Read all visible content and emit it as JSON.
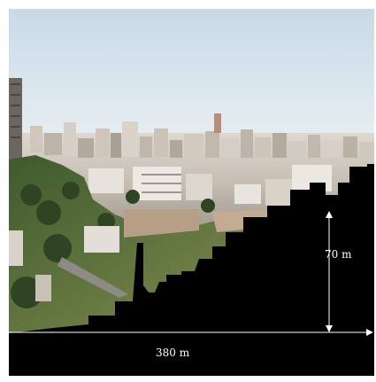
{
  "image": {
    "subject": "city-panorama-with-black-building-silhouette",
    "colors": {
      "sky_top": "#c9dbe8",
      "sky_bottom": "#e4ebee",
      "city_light": "#d8d0c6",
      "city_mid": "#a9a197",
      "vegetation": "#4f6b3a",
      "silhouette": "#000000",
      "annotation": "#ffffff"
    },
    "annotations": {
      "height_label": "70 m",
      "width_label": "380 m"
    }
  }
}
